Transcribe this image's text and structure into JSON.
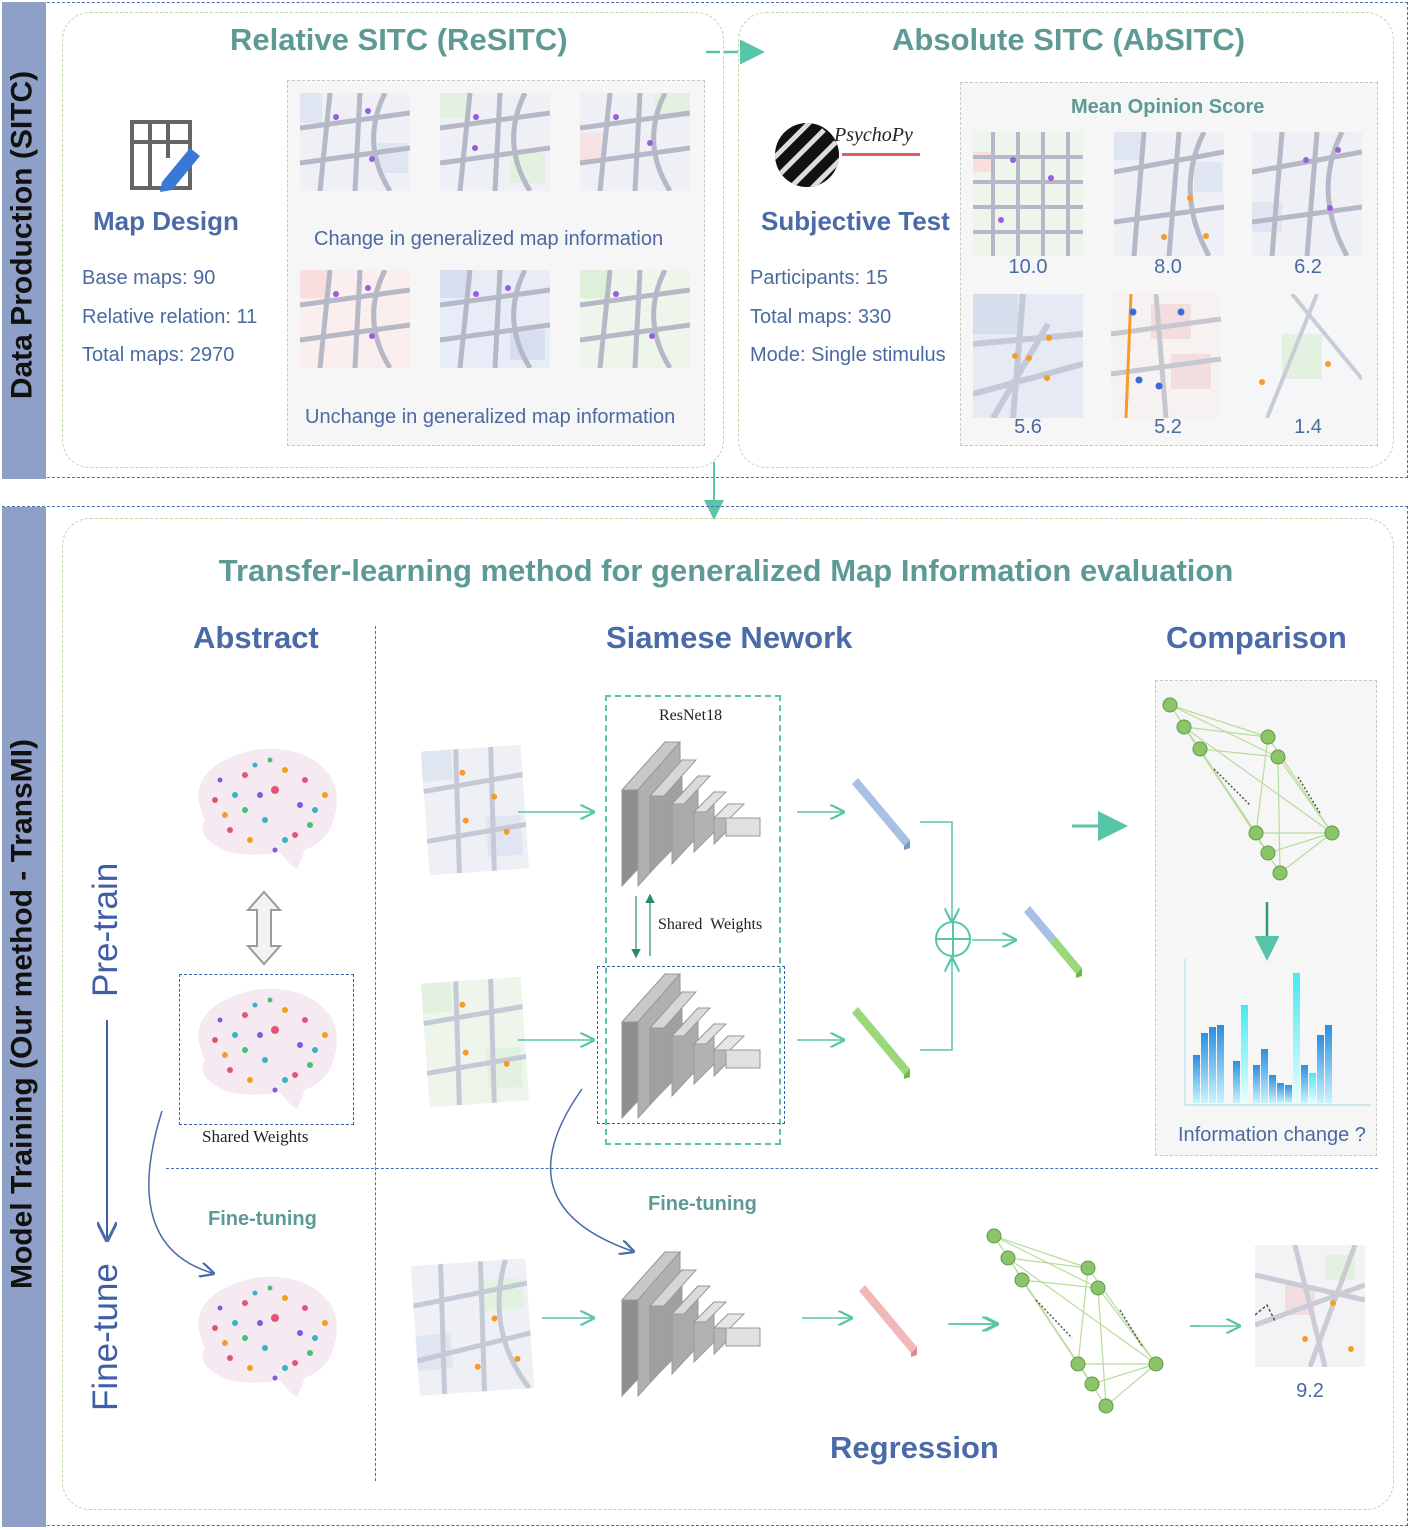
{
  "sections": {
    "data_production": "Data Production (SITC)",
    "model_training": "Model Training (Our method - TransMI)"
  },
  "resitc": {
    "title": "Relative SITC (ReSITC)",
    "map_design": "Map Design",
    "base_maps": "Base maps: 90",
    "relative_relation": "Relative relation: 11",
    "total_maps": "Total maps: 2970",
    "change_caption": "Change in generalized map information",
    "unchange_caption": "Unchange in generalized map information"
  },
  "absitc": {
    "title": "Absolute SITC (AbSITC)",
    "psychopy_logo": "PsychoPy",
    "subjective_test": "Subjective Test",
    "participants": "Participants: 15",
    "total_maps": "Total maps: 330",
    "mode": "Mode: Single stimulus",
    "mos_title": "Mean Opinion Score",
    "scores": [
      "10.0",
      "8.0",
      "6.2",
      "5.6",
      "5.2",
      "1.4"
    ]
  },
  "method": {
    "title": "Transfer-learning method for generalized Map Information evaluation",
    "abstract": "Abstract",
    "siamese": "Siamese Nework",
    "comparison": "Comparison",
    "pretrain": "Pre-train",
    "finetune": "Fine-tune",
    "shared_weights_brain": "Shared Weights",
    "resnet": "ResNet18",
    "shared_weights_net": "Shared  Weights",
    "info_change": "Information change ?",
    "finetuning_left": "Fine-tuning",
    "finetuning_mid": "Fine-tuning",
    "result_score": "9.2",
    "regression": "Regression"
  },
  "colors": {
    "teal": "#5e9a95",
    "blue_title": "#4a6aa8",
    "arrow": "#58c4a8",
    "sideband": "#8ea0c8",
    "node": "#8cc46a"
  }
}
